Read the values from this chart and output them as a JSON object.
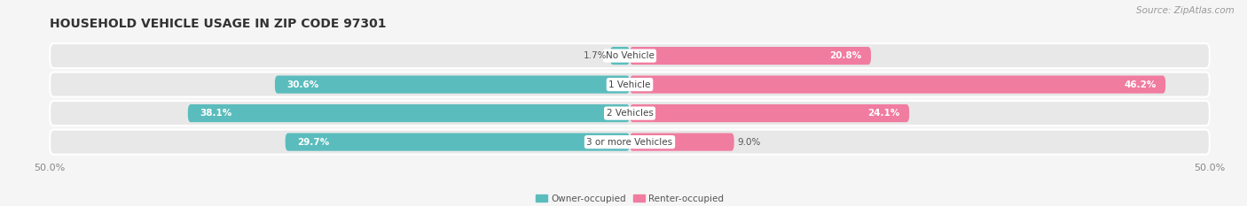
{
  "title": "HOUSEHOLD VEHICLE USAGE IN ZIP CODE 97301",
  "source": "Source: ZipAtlas.com",
  "categories": [
    "No Vehicle",
    "1 Vehicle",
    "2 Vehicles",
    "3 or more Vehicles"
  ],
  "owner_values": [
    1.7,
    30.6,
    38.1,
    29.7
  ],
  "renter_values": [
    20.8,
    46.2,
    24.1,
    9.0
  ],
  "owner_color": "#5bbcbd",
  "renter_color": "#f07ca0",
  "owner_label": "Owner-occupied",
  "renter_label": "Renter-occupied",
  "xlim": [
    -50,
    50
  ],
  "background_color": "#f5f5f5",
  "bar_bg_color": "#e8e8e8",
  "title_fontsize": 10,
  "source_fontsize": 7.5,
  "label_fontsize": 7.5,
  "tick_fontsize": 8,
  "bar_height": 0.62,
  "cat_label_fontsize": 7.5,
  "value_fontsize": 7.5
}
